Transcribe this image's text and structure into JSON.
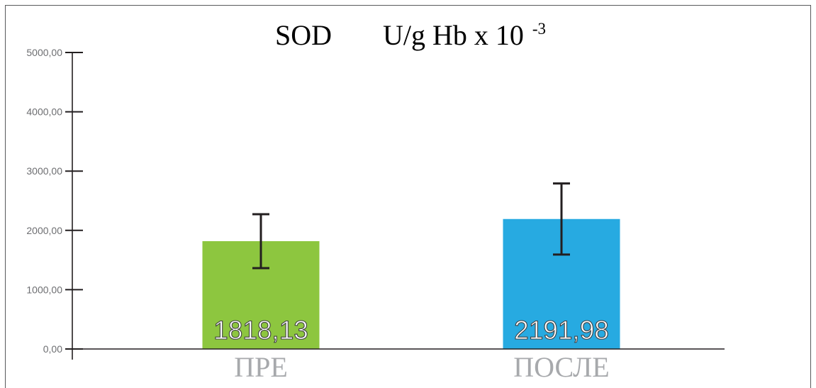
{
  "chart_data": {
    "type": "bar",
    "title": "SOD",
    "title_unit": "U/g Hb x 10",
    "title_unit_superscript": "-3",
    "categories": [
      "ПРЕ",
      "ПОСЛЕ"
    ],
    "values": [
      1818.13,
      2191.98
    ],
    "value_labels": [
      "1818,13",
      "2191,98"
    ],
    "errors": [
      455,
      600
    ],
    "bar_colors": [
      "#8dc63f",
      "#27aae1"
    ],
    "ylim": [
      0,
      5000
    ],
    "yticks": [
      0,
      1000,
      2000,
      3000,
      4000,
      5000
    ],
    "ytick_labels": [
      "0,00",
      "1000,00",
      "2000,00",
      "3000,00",
      "4000,00",
      "5000,00"
    ],
    "grid": false
  }
}
